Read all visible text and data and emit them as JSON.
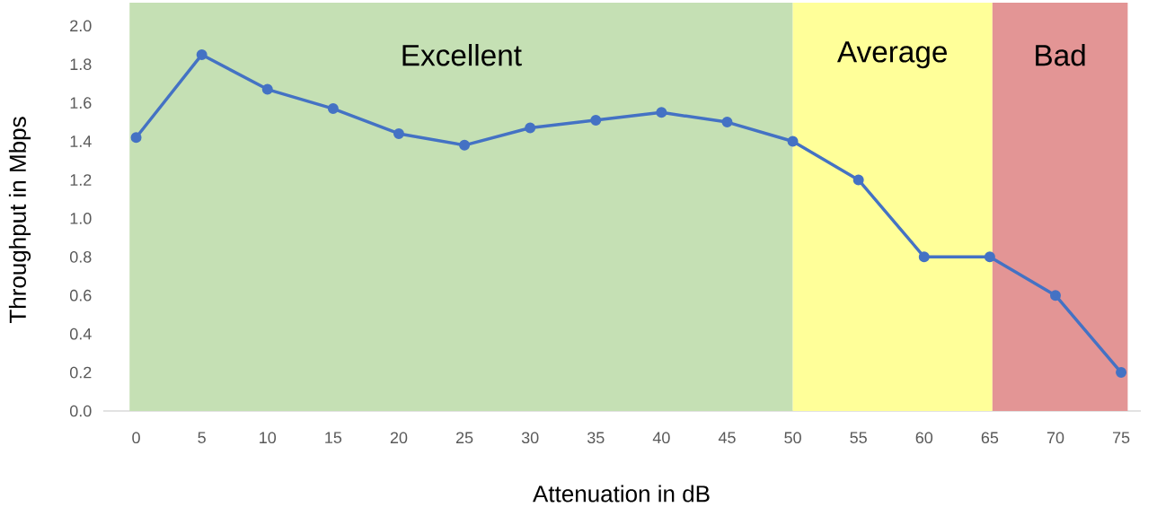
{
  "chart_data": {
    "type": "line",
    "xlabel": "Attenuation in dB",
    "ylabel": "Throughput in Mbps",
    "x": [
      0,
      5,
      10,
      15,
      20,
      25,
      30,
      35,
      40,
      45,
      50,
      55,
      60,
      65,
      70,
      75
    ],
    "series": [
      {
        "color": "#4472c4",
        "values": [
          1.42,
          1.85,
          1.67,
          1.57,
          1.44,
          1.38,
          1.47,
          1.51,
          1.55,
          1.5,
          1.4,
          1.2,
          0.8,
          0.8,
          0.6,
          0.2
        ]
      }
    ],
    "xlim": [
      -2.5,
      76.5
    ],
    "ylim": [
      0,
      2.12
    ],
    "xticks": [
      0,
      5,
      10,
      15,
      20,
      25,
      30,
      35,
      40,
      45,
      50,
      55,
      60,
      65,
      70,
      75
    ],
    "yticks": [
      {
        "value": 0,
        "label": "0.0"
      },
      {
        "value": 0.2,
        "label": "0.2"
      },
      {
        "value": 0.4,
        "label": "0.4"
      },
      {
        "value": 0.6,
        "label": "0.6"
      },
      {
        "value": 0.8,
        "label": "0.8"
      },
      {
        "value": 1.0,
        "label": "1.0"
      },
      {
        "value": 1.2,
        "label": "1.2"
      },
      {
        "value": 1.4,
        "label": "1.4"
      },
      {
        "value": 1.6,
        "label": "1.6"
      },
      {
        "value": 1.8,
        "label": "1.8"
      },
      {
        "value": 2.0,
        "label": "2.0"
      }
    ],
    "bands": [
      {
        "axis": "x",
        "from": -0.5,
        "to": 50,
        "label": "Excellent",
        "color": "#c5e0b4"
      },
      {
        "axis": "x",
        "from": 50,
        "to": 65.2,
        "label": "Average",
        "color": "#ffff99"
      },
      {
        "axis": "x",
        "from": 65.2,
        "to": 75.5,
        "label": "Bad",
        "color": "#e39595"
      }
    ],
    "marker": "circle",
    "line_style": "solid",
    "grid": false
  }
}
